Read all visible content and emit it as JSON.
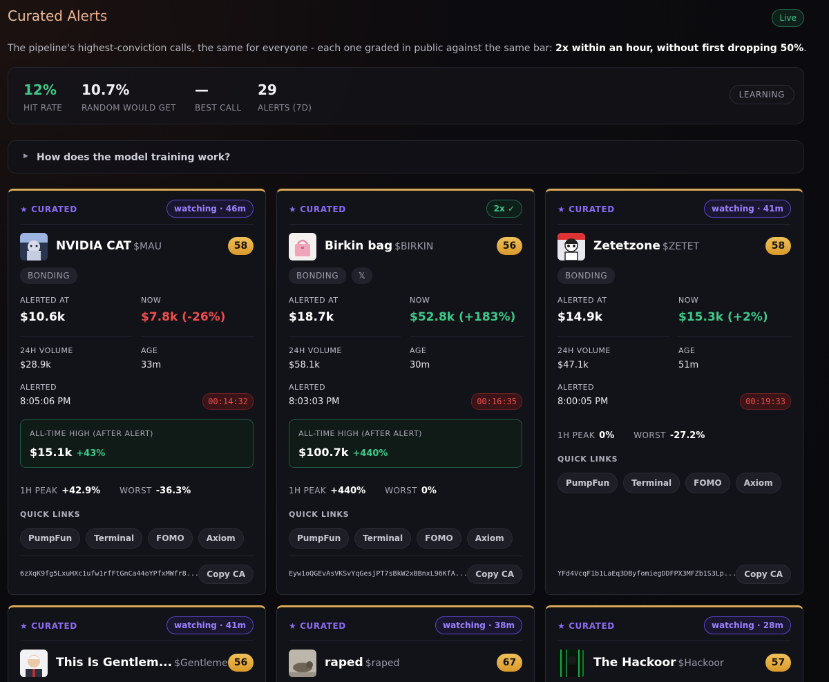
{
  "header": {
    "title": "Curated Alerts",
    "live_label": "Live",
    "subtitle_plain": "The pipeline's highest-conviction calls, the same for everyone - each one graded in public against the same bar: ",
    "subtitle_bold": "2x within an hour, without first dropping 50%",
    "subtitle_end": "."
  },
  "stats": {
    "hit_rate": {
      "value": "12%",
      "label": "HIT RATE"
    },
    "random": {
      "value": "10.7%",
      "label": "RANDOM WOULD GET"
    },
    "best_call": {
      "value": "—",
      "label": "BEST CALL"
    },
    "alerts": {
      "value": "29",
      "label": "ALERTS (7D)"
    },
    "mode_label": "LEARNING"
  },
  "faq": {
    "question": "How does the model training work?"
  },
  "labels": {
    "curated": "★ CURATED",
    "alerted_at": "ALERTED AT",
    "now": "NOW",
    "volume": "24H VOLUME",
    "age": "AGE",
    "alerted": "ALERTED",
    "ath": "ALL-TIME HIGH (AFTER ALERT)",
    "peak": "1H PEAK",
    "worst": "WORST",
    "quick_links": "QUICK LINKS",
    "copy_ca": "Copy CA",
    "links": [
      "PumpFun",
      "Terminal",
      "FOMO",
      "Axiom"
    ]
  },
  "cards": [
    {
      "status": "watching · 46m",
      "name": "NVIDIA CAT",
      "ticker": "$MAU",
      "score": "58",
      "tags": [
        "BONDING"
      ],
      "alerted_at": "$10.6k",
      "now": "$7.8k (-26%)",
      "now_color": "red",
      "volume": "$28.9k",
      "age": "33m",
      "alerted_time": "8:05:06 PM",
      "timer": "00:14:32",
      "ath_value": "$15.1k",
      "ath_pct": "+43%",
      "peak": "+42.9%",
      "worst": "-36.3%",
      "ca": "6zXqK9fg5LxuHXc1ufw1rfFtGnCa44oYPfxMWfr8..."
    },
    {
      "status": "2x ✓",
      "name": "Birkin bag",
      "ticker": "$BIRKIN",
      "score": "56",
      "tags": [
        "BONDING",
        "𝕏"
      ],
      "alerted_at": "$18.7k",
      "now": "$52.8k (+183%)",
      "now_color": "green",
      "volume": "$58.1k",
      "age": "30m",
      "alerted_time": "8:03:03 PM",
      "timer": "00:16:35",
      "ath_value": "$100.7k",
      "ath_pct": "+440%",
      "peak": "+440%",
      "worst": "0%",
      "ca": "Eyw1oQGEvAsVKSvYqGesjPT7sBkW2xBBnxL96KfA..."
    },
    {
      "status": "watching · 41m",
      "name": "Zetetzone",
      "ticker": "$ZETET",
      "score": "58",
      "tags": [
        "BONDING"
      ],
      "alerted_at": "$14.9k",
      "now": "$15.3k (+2%)",
      "now_color": "green",
      "volume": "$47.1k",
      "age": "51m",
      "alerted_time": "8:00:05 PM",
      "timer": "00:19:33",
      "peak": "0%",
      "worst": "-27.2%",
      "ca": "YFd4VcqF1b1LaEq3DByfomiegDDFPX3MFZb1S3Lp..."
    },
    {
      "status": "watching · 41m",
      "name": "This Is Gentlem...",
      "ticker": "$Gentlemen",
      "score": "56"
    },
    {
      "status": "watching · 38m",
      "name": "raped",
      "ticker": "$raped",
      "score": "67"
    },
    {
      "status": "watching · 28m",
      "name": "The Hackoor",
      "ticker": "$Hackoor",
      "score": "57"
    }
  ],
  "colors": {
    "accent_gold": "#d9a857",
    "purple": "#8a6cf0",
    "green": "#3ec98a",
    "red": "#ef4d4d"
  }
}
